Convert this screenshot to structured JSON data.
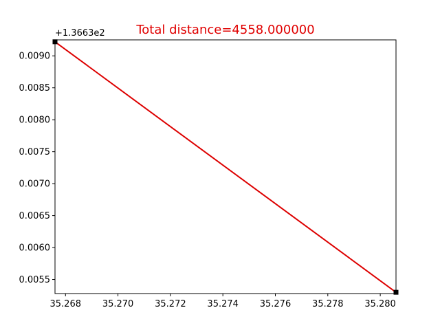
{
  "chart_data": {
    "type": "line",
    "title": "Total distance=4558.000000",
    "title_color": "#e00000",
    "line_color": "#dd0000",
    "marker_color": "#000000",
    "xlabel": "",
    "ylabel": "",
    "y_offset_label": "+1.3663e2",
    "xlim": [
      35.2676,
      35.2806
    ],
    "ylim": [
      0.00528,
      0.00925
    ],
    "x_ticks": [
      35.268,
      35.27,
      35.272,
      35.274,
      35.276,
      35.278,
      35.28
    ],
    "x_tick_labels": [
      "35.268",
      "35.270",
      "35.272",
      "35.274",
      "35.276",
      "35.278",
      "35.280"
    ],
    "y_ticks": [
      0.0055,
      0.006,
      0.0065,
      0.007,
      0.0075,
      0.008,
      0.0085,
      0.009
    ],
    "y_tick_labels": [
      "0.0055",
      "0.0060",
      "0.0065",
      "0.0070",
      "0.0075",
      "0.0080",
      "0.0085",
      "0.0090"
    ],
    "series": [
      {
        "x": [
          35.2676,
          35.2806
        ],
        "y": [
          0.00922,
          0.0053
        ]
      }
    ],
    "grid": false
  }
}
